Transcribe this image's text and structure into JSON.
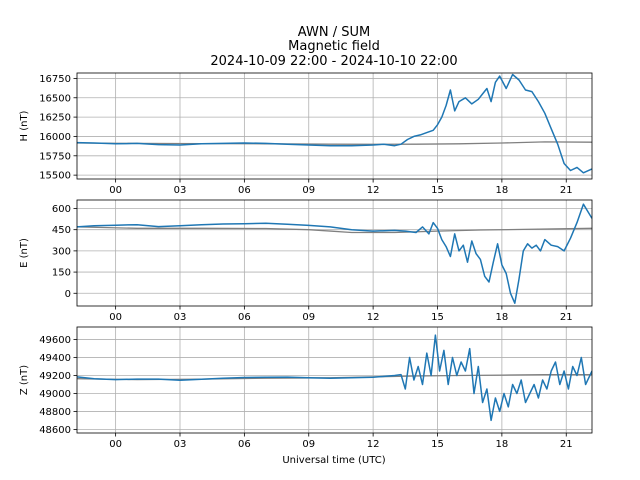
{
  "chart_data": {
    "type": "line",
    "title": {
      "line1": "AWN / SUM",
      "line2": "Magnetic field",
      "line3": "2024-10-09 22:00 - 2024-10-10 22:00"
    },
    "xlabel": "Universal time (UTC)",
    "x_unit": "hours since 2024-10-09 22:00 UTC",
    "xlim": [
      0.2,
      24.2
    ],
    "x_ticks": [
      2,
      5,
      8,
      11,
      14,
      17,
      20,
      23
    ],
    "x_tick_labels": [
      "00",
      "03",
      "06",
      "09",
      "12",
      "15",
      "18",
      "21"
    ],
    "grid": true,
    "colors": {
      "measured": "#1f77b4",
      "baseline": "#808080"
    },
    "panels": [
      {
        "name": "H",
        "ylabel": "H (nT)",
        "ylim": [
          15450,
          16820
        ],
        "y_ticks": [
          15500,
          15750,
          16000,
          16250,
          16500,
          16750
        ],
        "y_tick_labels": [
          "15500",
          "15750",
          "16000",
          "16250",
          "16500",
          "16750"
        ],
        "series": [
          {
            "name": "measured",
            "x": [
              0.2,
              1,
              2,
              3,
              4,
              5,
              6,
              7,
              8,
              9,
              10,
              11,
              12,
              13,
              14,
              14.5,
              15,
              15.3,
              15.6,
              15.9,
              16.2,
              16.5,
              16.8,
              17.0,
              17.2,
              17.4,
              17.6,
              17.8,
              18.0,
              18.3,
              18.6,
              18.9,
              19.1,
              19.3,
              19.5,
              19.7,
              19.9,
              20.2,
              20.5,
              20.8,
              21.1,
              21.4,
              21.7,
              22.0,
              22.3,
              22.6,
              22.9,
              23.2,
              23.5,
              23.8,
              24.2
            ],
            "y": [
              15920,
              15915,
              15905,
              15910,
              15895,
              15890,
              15905,
              15910,
              15915,
              15910,
              15900,
              15890,
              15880,
              15880,
              15890,
              15900,
              15880,
              15900,
              15960,
              16000,
              16020,
              16050,
              16080,
              16150,
              16250,
              16400,
              16600,
              16330,
              16450,
              16500,
              16420,
              16480,
              16550,
              16620,
              16450,
              16700,
              16780,
              16620,
              16800,
              16730,
              16600,
              16580,
              16450,
              16300,
              16100,
              15900,
              15650,
              15560,
              15600,
              15530,
              15580
            ]
          },
          {
            "name": "baseline",
            "x": [
              0.2,
              3,
              6,
              9,
              12,
              14,
              16,
              18,
              20,
              22,
              24.2
            ],
            "y": [
              15915,
              15910,
              15908,
              15905,
              15900,
              15898,
              15900,
              15905,
              15915,
              15930,
              15925
            ]
          }
        ]
      },
      {
        "name": "E",
        "ylabel": "E (nT)",
        "ylim": [
          -90,
          660
        ],
        "y_ticks": [
          0,
          150,
          300,
          450,
          600
        ],
        "y_tick_labels": [
          "0",
          "150",
          "300",
          "450",
          "600"
        ],
        "series": [
          {
            "name": "measured",
            "x": [
              0.2,
              1,
              2,
              3,
              4,
              5,
              6,
              7,
              8,
              9,
              10,
              11,
              12,
              13,
              14,
              15,
              15.5,
              16,
              16.3,
              16.6,
              16.8,
              17.0,
              17.2,
              17.4,
              17.6,
              17.8,
              18.0,
              18.2,
              18.4,
              18.6,
              18.8,
              19.0,
              19.2,
              19.4,
              19.6,
              19.8,
              20.0,
              20.2,
              20.4,
              20.6,
              20.8,
              21.0,
              21.2,
              21.4,
              21.6,
              21.8,
              22.0,
              22.3,
              22.6,
              22.9,
              23.2,
              23.5,
              23.8,
              24.2
            ],
            "y": [
              470,
              478,
              482,
              485,
              472,
              478,
              485,
              490,
              492,
              495,
              488,
              480,
              470,
              450,
              440,
              445,
              440,
              430,
              470,
              420,
              500,
              460,
              380,
              330,
              260,
              420,
              300,
              340,
              220,
              370,
              280,
              240,
              120,
              80,
              220,
              350,
              200,
              140,
              0,
              -70,
              100,
              300,
              350,
              320,
              340,
              300,
              380,
              340,
              330,
              300,
              390,
              500,
              630,
              530
            ]
          },
          {
            "name": "baseline",
            "x": [
              0.2,
              3,
              6,
              9,
              11,
              13,
              15,
              17,
              19,
              21,
              24.2
            ],
            "y": [
              470,
              460,
              460,
              458,
              450,
              430,
              430,
              440,
              448,
              452,
              460
            ]
          }
        ]
      },
      {
        "name": "Z",
        "ylabel": "Z (nT)",
        "ylim": [
          48560,
          49740
        ],
        "y_ticks": [
          48600,
          48800,
          49000,
          49200,
          49400,
          49600
        ],
        "y_tick_labels": [
          "48600",
          "48800",
          "49000",
          "49200",
          "49400",
          "49600"
        ],
        "series": [
          {
            "name": "measured",
            "x": [
              0.2,
              1,
              2,
              3,
              4,
              5,
              6,
              7,
              8,
              9,
              10,
              11,
              12,
              13,
              14,
              15,
              15.3,
              15.5,
              15.7,
              15.9,
              16.1,
              16.3,
              16.5,
              16.7,
              16.9,
              17.1,
              17.3,
              17.5,
              17.7,
              17.9,
              18.1,
              18.3,
              18.5,
              18.7,
              18.9,
              19.1,
              19.3,
              19.5,
              19.7,
              19.9,
              20.1,
              20.3,
              20.5,
              20.7,
              20.9,
              21.1,
              21.3,
              21.5,
              21.7,
              21.9,
              22.1,
              22.3,
              22.5,
              22.7,
              22.9,
              23.1,
              23.3,
              23.5,
              23.7,
              23.9,
              24.2
            ],
            "y": [
              49185,
              49165,
              49155,
              49160,
              49160,
              49148,
              49158,
              49170,
              49178,
              49180,
              49182,
              49175,
              49170,
              49175,
              49180,
              49200,
              49210,
              49050,
              49400,
              49150,
              49300,
              49100,
              49450,
              49200,
              49650,
              49250,
              49480,
              49100,
              49400,
              49200,
              49350,
              49250,
              49500,
              49000,
              49300,
              48900,
              49050,
              48700,
              48950,
              48800,
              49000,
              48850,
              49100,
              49000,
              49150,
              48900,
              49000,
              49100,
              48950,
              49150,
              49050,
              49250,
              49350,
              49100,
              49250,
              49050,
              49300,
              49200,
              49400,
              49100,
              49250
            ]
          },
          {
            "name": "baseline",
            "x": [
              0.2,
              3,
              6,
              9,
              12,
              14,
              16,
              18,
              20,
              22,
              24.2
            ],
            "y": [
              49165,
              49155,
              49160,
              49170,
              49175,
              49185,
              49195,
              49200,
              49205,
              49210,
              49210
            ]
          }
        ]
      }
    ]
  }
}
